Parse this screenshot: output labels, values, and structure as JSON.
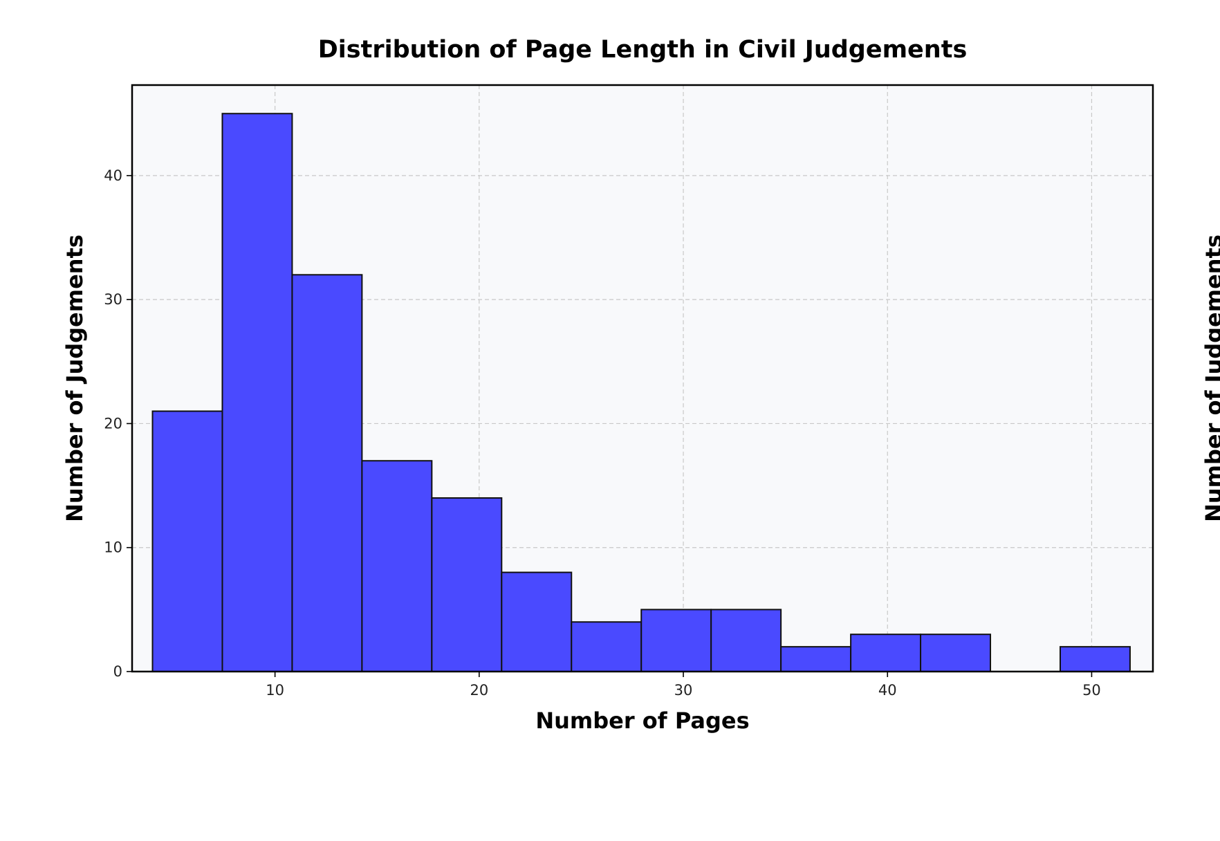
{
  "chart_data": {
    "type": "bar",
    "title": "Distribution of Page Length in Civil Judgements",
    "xlabel": "Number of Pages",
    "ylabel": "Number of Judgements",
    "right_ylabel": "Number of Judgements",
    "xlim": [
      3,
      53
    ],
    "ylim": [
      0,
      47.3
    ],
    "xticks": [
      10,
      20,
      30,
      40,
      50
    ],
    "yticks": [
      0,
      10,
      20,
      30,
      40
    ],
    "grid": true,
    "legend": "none",
    "bins": [
      {
        "x0": 4.0,
        "x1": 7.42,
        "value": 21
      },
      {
        "x0": 7.42,
        "x1": 10.84,
        "value": 45
      },
      {
        "x0": 10.84,
        "x1": 14.26,
        "value": 32
      },
      {
        "x0": 14.26,
        "x1": 17.68,
        "value": 17
      },
      {
        "x0": 17.68,
        "x1": 21.1,
        "value": 14
      },
      {
        "x0": 21.1,
        "x1": 24.52,
        "value": 8
      },
      {
        "x0": 24.52,
        "x1": 27.94,
        "value": 4
      },
      {
        "x0": 27.94,
        "x1": 31.36,
        "value": 5
      },
      {
        "x0": 31.36,
        "x1": 34.78,
        "value": 5
      },
      {
        "x0": 34.78,
        "x1": 38.2,
        "value": 2
      },
      {
        "x0": 38.2,
        "x1": 41.62,
        "value": 3
      },
      {
        "x0": 41.62,
        "x1": 45.04,
        "value": 3
      },
      {
        "x0": 45.04,
        "x1": 48.46,
        "value": 0
      },
      {
        "x0": 48.46,
        "x1": 51.88,
        "value": 2
      }
    ],
    "colors": {
      "bar_fill": "#4a4aff",
      "bar_edge": "#111111",
      "plot_background": "#f8f9fb",
      "grid": "#c8c8c8"
    }
  }
}
